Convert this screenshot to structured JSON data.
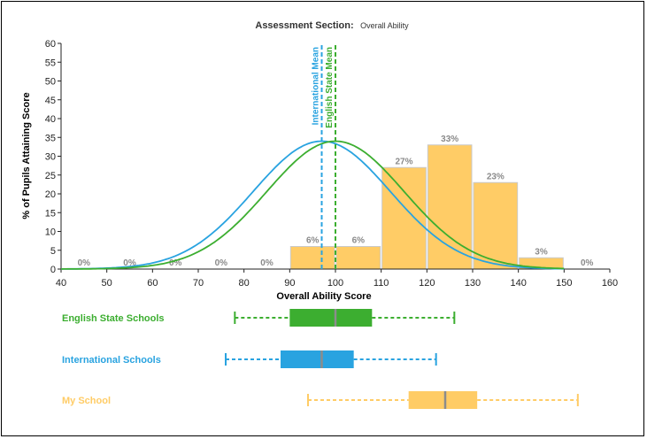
{
  "title": {
    "label": "Assessment Section:",
    "value": "Overall Ability"
  },
  "chart_data": {
    "type": "bar",
    "xlabel": "Overall Ability Score",
    "ylabel": "% of Pupils Attaining Score",
    "xlim": [
      40,
      160
    ],
    "ylim": [
      0,
      60
    ],
    "xticks": [
      40,
      50,
      60,
      70,
      80,
      90,
      100,
      110,
      120,
      130,
      140,
      150,
      160
    ],
    "yticks": [
      0,
      5,
      10,
      15,
      20,
      25,
      30,
      35,
      40,
      45,
      50,
      55,
      60
    ],
    "bin_width": 10,
    "bins": [
      {
        "center": 45,
        "value": 0,
        "label": "0%"
      },
      {
        "center": 55,
        "value": 0,
        "label": "0%"
      },
      {
        "center": 65,
        "value": 0,
        "label": "0%"
      },
      {
        "center": 75,
        "value": 0,
        "label": "0%"
      },
      {
        "center": 85,
        "value": 0,
        "label": "0%"
      },
      {
        "center": 95,
        "value": 6,
        "label": "6%"
      },
      {
        "center": 105,
        "value": 6,
        "label": "6%"
      },
      {
        "center": 115,
        "value": 27,
        "label": "27%"
      },
      {
        "center": 125,
        "value": 33,
        "label": "33%"
      },
      {
        "center": 135,
        "value": 23,
        "label": "23%"
      },
      {
        "center": 145,
        "value": 3,
        "label": "3%"
      },
      {
        "center": 155,
        "value": 0,
        "label": "0%"
      }
    ],
    "curves": [
      {
        "mean": 97,
        "sd": 15,
        "peak": 34,
        "min": 40,
        "max": 150,
        "color": "#29a3e0"
      },
      {
        "mean": 100,
        "sd": 15,
        "peak": 34,
        "min": 40,
        "max": 150,
        "color": "#3cae30"
      }
    ],
    "mean_lines": [
      {
        "x": 97,
        "label": "International Mean",
        "color": "#29a3e0"
      },
      {
        "x": 100,
        "label": "English State Mean",
        "color": "#3cae30"
      }
    ],
    "boxplots": [
      {
        "name": "English State Schools",
        "min": 78,
        "q1": 90,
        "median": 100,
        "q3": 108,
        "max": 126,
        "color": "#3cae30"
      },
      {
        "name": "International Schools",
        "min": 76,
        "q1": 88,
        "median": 97,
        "q3": 104,
        "max": 122,
        "color": "#29a3e0"
      },
      {
        "name": "My School",
        "min": 94,
        "q1": 116,
        "median": 124,
        "q3": 131,
        "max": 153,
        "color": "#ffcc66"
      }
    ],
    "bar_color": "#ffcc66",
    "grid": false
  }
}
